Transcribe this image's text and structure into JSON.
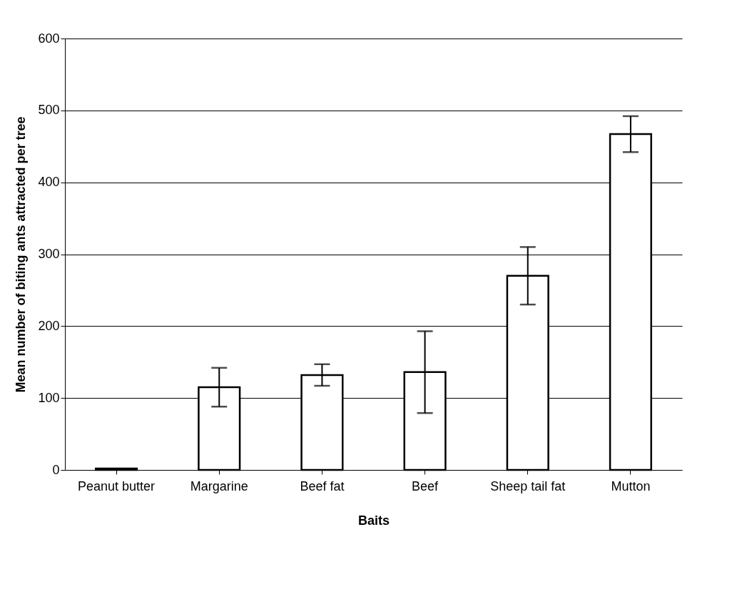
{
  "chart_data": {
    "type": "bar",
    "xlabel": "Baits",
    "ylabel": "Mean number of biting ants attracted per tree",
    "categories": [
      "Peanut butter",
      "Margarine",
      "Beef fat",
      "Beef",
      "Sheep tail fat",
      "Mutton"
    ],
    "values": [
      2,
      115,
      132,
      136,
      270,
      467
    ],
    "errors": [
      null,
      27,
      15,
      57,
      40,
      25
    ],
    "color": "#ffffff",
    "ylim": [
      0,
      600
    ],
    "yticks": [
      0,
      100,
      200,
      300,
      400,
      500,
      600
    ],
    "grid": "y"
  }
}
